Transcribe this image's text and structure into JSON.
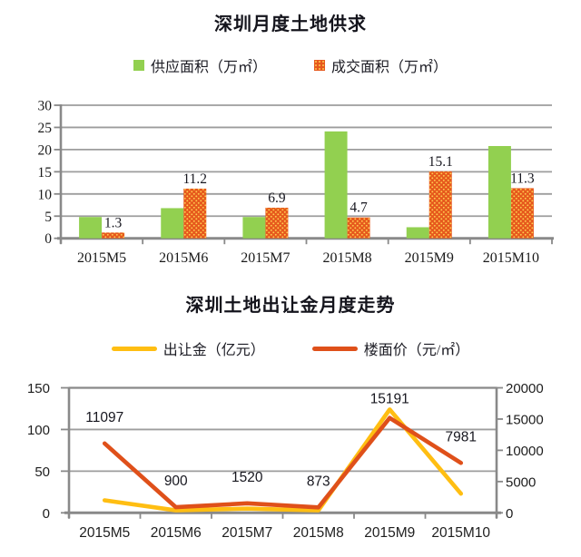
{
  "palette": {
    "supply_green": "#92D050",
    "deal_orange": "#E6591D",
    "deal_orange_dots": "#FFCB4E",
    "money_yellow": "#FFBE12",
    "floorprice_orange": "#DF501A",
    "gridline": "#9D9D9D",
    "axis": "#898989",
    "label_text": "#17171f"
  },
  "chart_data": [
    {
      "type": "bar",
      "title": "深圳月度土地供求",
      "categories": [
        "2015M5",
        "2015M6",
        "2015M7",
        "2015M8",
        "2015M9",
        "2015M10"
      ],
      "series": [
        {
          "name": "供应面积（万㎡）",
          "color_key": "supply_green",
          "pattern": "solid",
          "data_labels": false,
          "values": [
            4.8,
            6.8,
            4.8,
            24.1,
            2.5,
            20.8
          ]
        },
        {
          "name": "成交面积（万㎡）",
          "color_key": "deal_orange",
          "pattern": "dots",
          "data_labels": true,
          "values": [
            1.3,
            11.2,
            6.9,
            4.7,
            15.1,
            11.3
          ]
        }
      ],
      "ylim": [
        0,
        30
      ],
      "yticks": [
        30,
        25,
        20,
        15,
        10,
        5,
        0
      ],
      "grid": true,
      "legend_position": "top"
    },
    {
      "type": "line",
      "title": "深圳土地出让金月度走势",
      "categories": [
        "2015M5",
        "2015M6",
        "2015M7",
        "2015M8",
        "2015M9",
        "2015M10"
      ],
      "series": [
        {
          "name": "出让金（亿元）",
          "axis": "left",
          "color_key": "money_yellow",
          "data_labels": false,
          "values": [
            15,
            3,
            5,
            3,
            124,
            23
          ]
        },
        {
          "name": "楼面价（元/㎡）",
          "axis": "right",
          "color_key": "floorprice_orange",
          "data_labels": true,
          "values": [
            11097,
            900,
            1520,
            873,
            15191,
            7981
          ]
        }
      ],
      "left_axis": {
        "lim": [
          0,
          150
        ],
        "ticks": [
          150,
          100,
          50,
          0
        ]
      },
      "right_axis": {
        "lim": [
          0,
          20000
        ],
        "ticks": [
          20000,
          15000,
          10000,
          5000,
          0
        ]
      },
      "grid": true,
      "legend_position": "top"
    }
  ]
}
